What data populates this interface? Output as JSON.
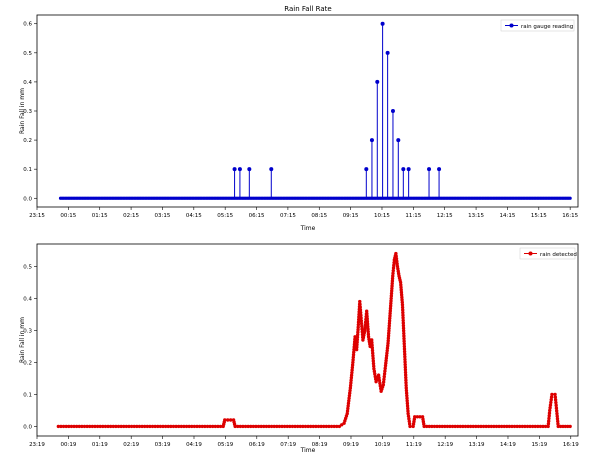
{
  "chart_data": [
    {
      "type": "line",
      "title": "Rain Fall Rate",
      "xlabel": "Time",
      "ylabel": "Rain Fall in mm",
      "x_ticks": [
        "23:15",
        "00:15",
        "01:15",
        "02:15",
        "03:15",
        "04:15",
        "05:15",
        "06:15",
        "07:15",
        "08:15",
        "09:15",
        "10:15",
        "11:15",
        "12:15",
        "13:15",
        "14:15",
        "15:15",
        "16:15"
      ],
      "y_ticks": [
        "0.0",
        "0.1",
        "0.2",
        "0.3",
        "0.4",
        "0.5",
        "0.6"
      ],
      "ylim": [
        -0.03,
        0.63
      ],
      "xlim_hours": [
        23.25,
        40.5
      ],
      "grid": false,
      "legend": "top-right",
      "series": [
        {
          "name": "rain gauge reading",
          "color": "#0000cc",
          "marker": "circle",
          "style": "stem",
          "x_start": 24.0,
          "x_end": 40.25,
          "baseline": 0.0,
          "points": [
            {
              "x": 29.55,
              "y": 0.1
            },
            {
              "x": 29.72,
              "y": 0.1
            },
            {
              "x": 30.02,
              "y": 0.1
            },
            {
              "x": 30.72,
              "y": 0.1
            },
            {
              "x": 33.75,
              "y": 0.1
            },
            {
              "x": 33.93,
              "y": 0.2
            },
            {
              "x": 34.1,
              "y": 0.4
            },
            {
              "x": 34.27,
              "y": 0.6
            },
            {
              "x": 34.43,
              "y": 0.5
            },
            {
              "x": 34.6,
              "y": 0.3
            },
            {
              "x": 34.77,
              "y": 0.2
            },
            {
              "x": 34.93,
              "y": 0.1
            },
            {
              "x": 35.1,
              "y": 0.1
            },
            {
              "x": 35.75,
              "y": 0.1
            },
            {
              "x": 36.07,
              "y": 0.1
            }
          ]
        }
      ]
    },
    {
      "type": "line",
      "title": "",
      "xlabel": "Time",
      "ylabel": "Rain Fall in mm",
      "x_ticks": [
        "23:19",
        "00:19",
        "01:19",
        "02:19",
        "03:19",
        "04:19",
        "05:19",
        "06:19",
        "07:19",
        "08:19",
        "09:19",
        "10:19",
        "11:19",
        "12:19",
        "13:19",
        "14:19",
        "15:19",
        "16:19"
      ],
      "y_ticks": [
        "0.0",
        "0.1",
        "0.2",
        "0.3",
        "0.4",
        "0.5"
      ],
      "ylim": [
        -0.03,
        0.57
      ],
      "xlim_hours": [
        23.32,
        40.55
      ],
      "grid": false,
      "legend": "top-right",
      "series": [
        {
          "name": "rain detected",
          "color": "#dd0000",
          "marker": "circle",
          "style": "line",
          "points": [
            {
              "x": 24.0,
              "y": 0.0
            },
            {
              "x": 29.25,
              "y": 0.0
            },
            {
              "x": 29.3,
              "y": 0.02
            },
            {
              "x": 29.58,
              "y": 0.02
            },
            {
              "x": 29.63,
              "y": 0.0
            },
            {
              "x": 32.95,
              "y": 0.0
            },
            {
              "x": 33.1,
              "y": 0.01
            },
            {
              "x": 33.2,
              "y": 0.04
            },
            {
              "x": 33.3,
              "y": 0.12
            },
            {
              "x": 33.38,
              "y": 0.2
            },
            {
              "x": 33.45,
              "y": 0.28
            },
            {
              "x": 33.5,
              "y": 0.24
            },
            {
              "x": 33.55,
              "y": 0.31
            },
            {
              "x": 33.6,
              "y": 0.39
            },
            {
              "x": 33.65,
              "y": 0.33
            },
            {
              "x": 33.7,
              "y": 0.27
            },
            {
              "x": 33.76,
              "y": 0.3
            },
            {
              "x": 33.82,
              "y": 0.36
            },
            {
              "x": 33.88,
              "y": 0.28
            },
            {
              "x": 33.93,
              "y": 0.25
            },
            {
              "x": 33.98,
              "y": 0.27
            },
            {
              "x": 34.05,
              "y": 0.18
            },
            {
              "x": 34.12,
              "y": 0.14
            },
            {
              "x": 34.2,
              "y": 0.16
            },
            {
              "x": 34.28,
              "y": 0.11
            },
            {
              "x": 34.35,
              "y": 0.13
            },
            {
              "x": 34.42,
              "y": 0.19
            },
            {
              "x": 34.5,
              "y": 0.26
            },
            {
              "x": 34.55,
              "y": 0.33
            },
            {
              "x": 34.6,
              "y": 0.4
            },
            {
              "x": 34.65,
              "y": 0.47
            },
            {
              "x": 34.7,
              "y": 0.52
            },
            {
              "x": 34.75,
              "y": 0.54
            },
            {
              "x": 34.8,
              "y": 0.5
            },
            {
              "x": 34.85,
              "y": 0.47
            },
            {
              "x": 34.9,
              "y": 0.45
            },
            {
              "x": 34.96,
              "y": 0.38
            },
            {
              "x": 35.02,
              "y": 0.25
            },
            {
              "x": 35.08,
              "y": 0.12
            },
            {
              "x": 35.14,
              "y": 0.04
            },
            {
              "x": 35.2,
              "y": 0.0
            },
            {
              "x": 35.3,
              "y": 0.0
            },
            {
              "x": 35.35,
              "y": 0.03
            },
            {
              "x": 35.6,
              "y": 0.03
            },
            {
              "x": 35.65,
              "y": 0.0
            },
            {
              "x": 39.6,
              "y": 0.0
            },
            {
              "x": 39.65,
              "y": 0.05
            },
            {
              "x": 39.72,
              "y": 0.1
            },
            {
              "x": 39.82,
              "y": 0.1
            },
            {
              "x": 39.88,
              "y": 0.04
            },
            {
              "x": 39.92,
              "y": 0.0
            },
            {
              "x": 40.3,
              "y": 0.0
            }
          ]
        }
      ]
    }
  ]
}
